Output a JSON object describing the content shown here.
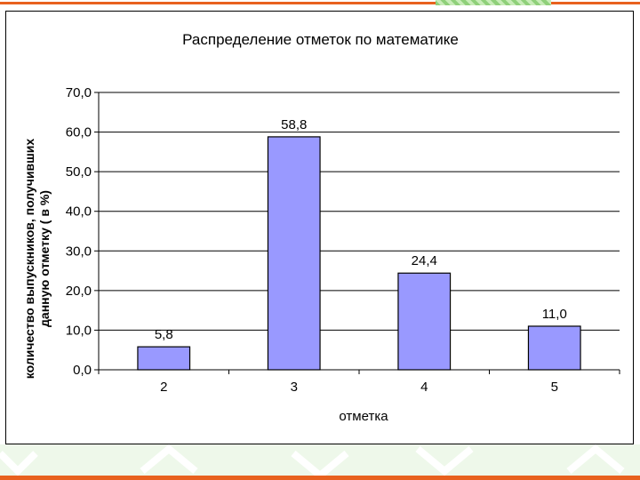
{
  "chart_data": {
    "type": "bar",
    "title": "Распределение отметок по математике",
    "xlabel": "отметка",
    "ylabel_lines": [
      "количество выпускников, получивших",
      "данную отметку ( в %)"
    ],
    "categories": [
      "2",
      "3",
      "4",
      "5"
    ],
    "values": [
      5.8,
      58.8,
      24.4,
      11.0
    ],
    "value_labels": [
      "5,8",
      "58,8",
      "24,4",
      "11,0"
    ],
    "ylim": [
      0,
      70
    ],
    "yticks": [
      "0,0",
      "10,0",
      "20,0",
      "30,0",
      "40,0",
      "50,0",
      "60,0",
      "70,0"
    ],
    "grid": true,
    "bar_color": "#9999ff",
    "bar_stroke": "#000000"
  }
}
